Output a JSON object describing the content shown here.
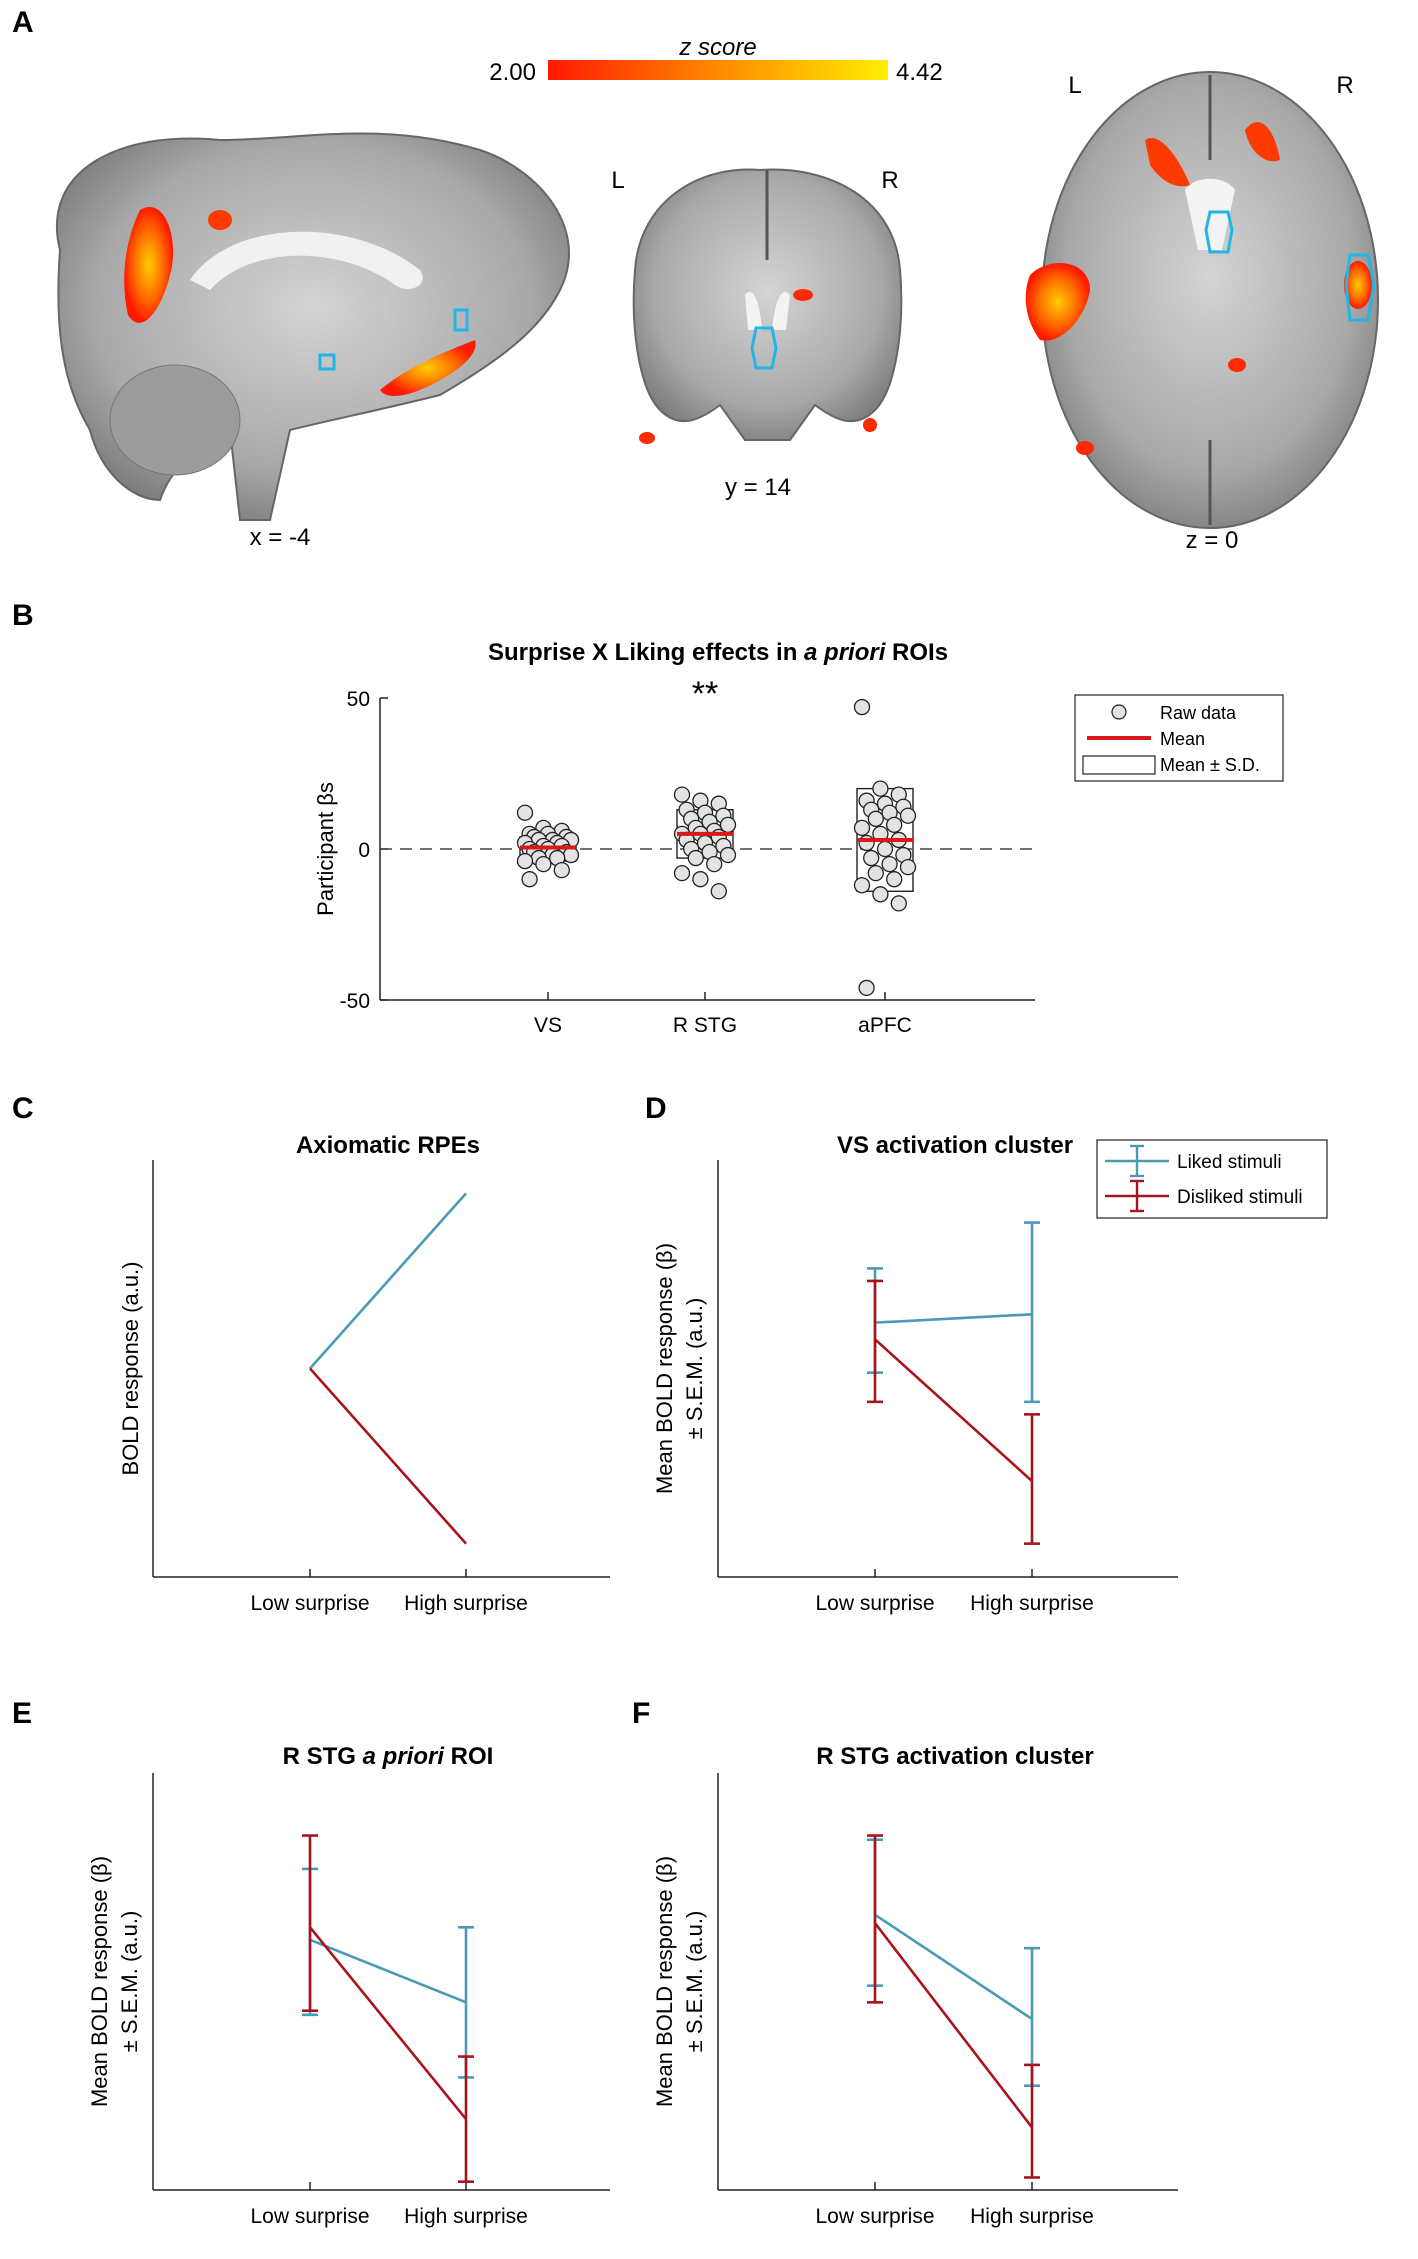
{
  "colors": {
    "liked": "#4a9ab5",
    "disliked": "#a8141b",
    "mean_line": "#d7191c",
    "axis": "#222222",
    "roi_outline": "#22b5e6",
    "activation_low": "#ff1a00",
    "activation_high": "#ffee00"
  },
  "panel_a": {
    "letter": "A",
    "colorbar": {
      "title": "z score",
      "min": "2.00",
      "max": "4.42"
    },
    "sagittal": {
      "coord": "x = -4"
    },
    "coronal": {
      "coord": "y = 14",
      "left": "L",
      "right": "R"
    },
    "axial": {
      "coord": "z = 0",
      "left": "L",
      "right": "R"
    }
  },
  "panel_b": {
    "letter": "B"
  },
  "panel_c": {
    "letter": "C"
  },
  "panel_d": {
    "letter": "D"
  },
  "panel_e": {
    "letter": "E"
  },
  "panel_f": {
    "letter": "F"
  },
  "chart_data": [
    {
      "id": "B",
      "type": "scatter",
      "title": "Surprise X Liking effects in a priori ROIs",
      "title_parts": [
        "Surprise X Liking effects in ",
        "a priori",
        " ROIs"
      ],
      "ylabel": "Participant βs",
      "ylim": [
        -50,
        50
      ],
      "yticks": [
        "50",
        "0",
        "-50"
      ],
      "ytick_values": [
        50,
        0,
        -50
      ],
      "categories": [
        "VS",
        "R STG",
        "aPFC"
      ],
      "significance": [
        {
          "category": "R STG",
          "label": "**"
        }
      ],
      "legend": [
        "Raw data",
        "Mean",
        "Mean ± S.D."
      ],
      "legend_position": "top-right",
      "zero_line": "dashed",
      "series": [
        {
          "name": "VS",
          "mean": 0.5,
          "sd_low": -4,
          "sd_high": 4,
          "values": [
            12,
            7,
            6,
            5,
            5,
            4,
            4,
            3,
            3,
            3,
            2,
            2,
            1,
            1,
            0,
            0,
            -1,
            -1,
            -2,
            -2,
            -3,
            -3,
            -4,
            -5,
            -7,
            -10
          ]
        },
        {
          "name": "R STG",
          "mean": 5,
          "sd_low": -3,
          "sd_high": 13,
          "values": [
            18,
            16,
            15,
            13,
            12,
            11,
            10,
            9,
            8,
            7,
            6,
            5,
            5,
            4,
            3,
            2,
            1,
            0,
            -1,
            -2,
            -3,
            -5,
            -8,
            -10,
            -14
          ]
        },
        {
          "name": "aPFC",
          "mean": 3,
          "sd_low": -14,
          "sd_high": 20,
          "values": [
            47,
            20,
            18,
            16,
            15,
            14,
            13,
            12,
            11,
            10,
            8,
            7,
            5,
            3,
            2,
            0,
            -2,
            -3,
            -5,
            -6,
            -8,
            -10,
            -12,
            -15,
            -18,
            -46
          ]
        }
      ]
    },
    {
      "id": "C",
      "type": "line",
      "title": "Axiomatic RPEs",
      "title_parts": [
        "Axiomatic RPEs",
        "",
        ""
      ],
      "ylabel": "BOLD response (a.u.)",
      "categories": [
        "Low surprise",
        "High surprise"
      ],
      "ylim": [
        0,
        1
      ],
      "series": [
        {
          "name": "Liked stimuli",
          "values": [
            0.5,
            0.92
          ]
        },
        {
          "name": "Disliked stimuli",
          "values": [
            0.5,
            0.08
          ]
        }
      ]
    },
    {
      "id": "D",
      "type": "line",
      "title": "VS activation cluster",
      "title_parts": [
        "VS activation cluster",
        "",
        ""
      ],
      "ylabel": [
        "Mean BOLD response (β)",
        "± S.E.M. (a.u.)"
      ],
      "categories": [
        "Low surprise",
        "High surprise"
      ],
      "ylim": [
        0,
        1
      ],
      "legend": [
        "Liked stimuli",
        "Disliked stimuli"
      ],
      "legend_position": "top-right",
      "series": [
        {
          "name": "Liked stimuli",
          "values": [
            0.61,
            0.63
          ],
          "err_low": [
            0.49,
            0.42
          ],
          "err_high": [
            0.74,
            0.85
          ]
        },
        {
          "name": "Disliked stimuli",
          "values": [
            0.57,
            0.23
          ],
          "err_low": [
            0.42,
            0.08
          ],
          "err_high": [
            0.71,
            0.39
          ]
        }
      ]
    },
    {
      "id": "E",
      "type": "line",
      "title": "R STG a priori ROI",
      "title_parts": [
        "R STG ",
        "a priori",
        " ROI"
      ],
      "ylabel": [
        "Mean BOLD response (β)",
        "± S.E.M. (a.u.)"
      ],
      "categories": [
        "Low surprise",
        "High surprise"
      ],
      "ylim": [
        0,
        1
      ],
      "series": [
        {
          "name": "Liked stimuli",
          "values": [
            0.6,
            0.45
          ],
          "err_low": [
            0.42,
            0.27
          ],
          "err_high": [
            0.77,
            0.63
          ]
        },
        {
          "name": "Disliked stimuli",
          "values": [
            0.63,
            0.17
          ],
          "err_low": [
            0.43,
            0.02
          ],
          "err_high": [
            0.85,
            0.32
          ]
        }
      ]
    },
    {
      "id": "F",
      "type": "line",
      "title": "R STG activation cluster",
      "title_parts": [
        "R STG activation cluster",
        "",
        ""
      ],
      "ylabel": [
        "Mean BOLD response (β)",
        "± S.E.M. (a.u.)"
      ],
      "categories": [
        "Low surprise",
        "High surprise"
      ],
      "ylim": [
        0,
        1
      ],
      "series": [
        {
          "name": "Liked stimuli",
          "values": [
            0.66,
            0.41
          ],
          "err_low": [
            0.49,
            0.25
          ],
          "err_high": [
            0.84,
            0.58
          ]
        },
        {
          "name": "Disliked stimuli",
          "values": [
            0.64,
            0.15
          ],
          "err_low": [
            0.45,
            0.03
          ],
          "err_high": [
            0.85,
            0.3
          ]
        }
      ]
    }
  ]
}
